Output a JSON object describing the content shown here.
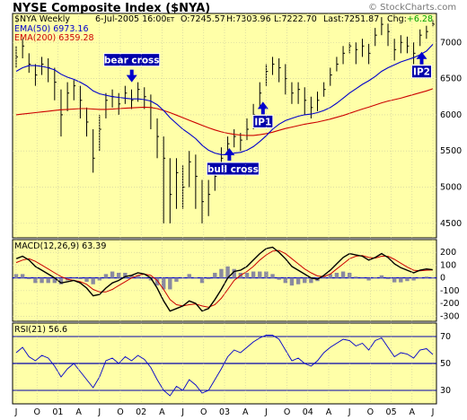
{
  "chart_data": {
    "type": "line",
    "title": "NYSE Composite Index ($NYA)",
    "copyright": "© StockCharts.com",
    "header": {
      "symbol": "$NYA Weekly",
      "date": "6-Jul-2005 16:00",
      "date_suffix": "ET",
      "open": "O:7245.57",
      "high": "H:7303.96",
      "low": "L:7222.70",
      "last": "Last:7251.87",
      "change_label": "Chg:",
      "change_value": "+6.28"
    },
    "legend": [
      {
        "label": "EMA(50) 6973.16",
        "color": "#0000cc"
      },
      {
        "label": "EMA(200) 6359.28",
        "color": "#cc0000"
      }
    ],
    "price_axis": {
      "ylim": [
        4300,
        7400
      ],
      "ticks": [
        4500,
        5000,
        5500,
        6000,
        6500,
        7000
      ]
    },
    "x_axis_labels": [
      "J",
      "O",
      "01",
      "A",
      "J",
      "O",
      "02",
      "A",
      "J",
      "O",
      "03",
      "A",
      "J",
      "O",
      "04",
      "A",
      "J",
      "O",
      "05",
      "A",
      "J"
    ],
    "price": {
      "x": [
        0,
        4,
        8,
        12,
        16,
        20,
        24,
        28,
        32,
        36,
        40,
        44,
        48,
        52,
        56,
        60,
        64,
        68,
        72,
        76,
        80,
        84,
        88,
        92,
        96,
        100,
        104,
        108,
        112,
        116,
        120,
        124,
        128,
        132,
        136,
        140,
        144,
        148,
        152,
        156,
        160,
        164,
        168,
        172,
        176,
        180,
        184,
        188,
        192,
        196,
        200,
        204,
        208,
        212,
        216,
        220,
        224,
        228,
        232,
        236,
        240,
        244,
        248,
        252,
        256,
        260
      ],
      "close": [
        6800,
        6950,
        6700,
        6550,
        6700,
        6650,
        6450,
        6000,
        6300,
        6400,
        6200,
        5900,
        5400,
        5800,
        6200,
        6250,
        6150,
        6300,
        6200,
        6350,
        6250,
        6100,
        5700,
        5400,
        4900,
        5200,
        5000,
        5350,
        5150,
        4800,
        4900,
        5150,
        5400,
        5600,
        5700,
        5650,
        5800,
        6000,
        6300,
        6600,
        6700,
        6650,
        6500,
        6300,
        6350,
        6200,
        6100,
        6200,
        6350,
        6550,
        6700,
        6850,
        6950,
        6900,
        6950,
        6850,
        7100,
        7250,
        7150,
        6900,
        7000,
        6950,
        6850,
        7100,
        7150,
        7251.87
      ],
      "high": [
        6950,
        7050,
        6850,
        6700,
        6800,
        6780,
        6650,
        6350,
        6450,
        6480,
        6400,
        6100,
        5800,
        6000,
        6300,
        6350,
        6300,
        6400,
        6350,
        6450,
        6380,
        6280,
        5950,
        5700,
        5400,
        5400,
        5300,
        5500,
        5450,
        5100,
        5100,
        5300,
        5550,
        5700,
        5800,
        5750,
        5950,
        6150,
        6450,
        6700,
        6800,
        6780,
        6700,
        6450,
        6450,
        6380,
        6250,
        6320,
        6450,
        6650,
        6800,
        6950,
        7000,
        7000,
        7050,
        6980,
        7200,
        7350,
        7260,
        7050,
        7100,
        7080,
        7000,
        7180,
        7230,
        7303.96
      ],
      "low": [
        6650,
        6780,
        6580,
        6400,
        6550,
        6450,
        6200,
        5700,
        6050,
        6200,
        5950,
        5700,
        5200,
        5500,
        5950,
        6100,
        6000,
        6150,
        6080,
        6180,
        6080,
        5800,
        5400,
        4500,
        4500,
        4700,
        4700,
        5000,
        4700,
        4500,
        4600,
        4950,
        5200,
        5450,
        5550,
        5500,
        5650,
        5800,
        6100,
        6400,
        6550,
        6450,
        6280,
        6150,
        6150,
        6000,
        5950,
        6050,
        6250,
        6400,
        6600,
        6700,
        6850,
        6700,
        6800,
        6700,
        6950,
        7100,
        6950,
        6750,
        6850,
        6850,
        6700,
        6950,
        7050,
        7222.7
      ],
      "ema50": [
        6600,
        6650,
        6680,
        6680,
        6670,
        6650,
        6620,
        6560,
        6520,
        6490,
        6450,
        6400,
        6330,
        6290,
        6270,
        6250,
        6240,
        6230,
        6220,
        6220,
        6210,
        6190,
        6140,
        6060,
        5960,
        5880,
        5800,
        5740,
        5670,
        5580,
        5510,
        5470,
        5450,
        5450,
        5470,
        5480,
        5510,
        5560,
        5630,
        5710,
        5800,
        5870,
        5920,
        5950,
        5980,
        6000,
        6010,
        6030,
        6060,
        6100,
        6160,
        6230,
        6300,
        6360,
        6420,
        6470,
        6530,
        6600,
        6650,
        6690,
        6730,
        6760,
        6790,
        6830,
        6880,
        6973.16
      ],
      "ema200": [
        6000,
        6010,
        6020,
        6030,
        6040,
        6050,
        6060,
        6070,
        6075,
        6080,
        6085,
        6085,
        6080,
        6075,
        6075,
        6080,
        6085,
        6090,
        6095,
        6100,
        6105,
        6100,
        6085,
        6060,
        6030,
        5995,
        5960,
        5925,
        5890,
        5855,
        5820,
        5790,
        5765,
        5745,
        5730,
        5720,
        5715,
        5715,
        5725,
        5740,
        5760,
        5785,
        5810,
        5830,
        5850,
        5870,
        5885,
        5900,
        5920,
        5940,
        5965,
        5990,
        6020,
        6050,
        6080,
        6105,
        6135,
        6165,
        6190,
        6210,
        6230,
        6255,
        6280,
        6305,
        6330,
        6359.28
      ]
    },
    "annotations": [
      {
        "label": "bear cross",
        "at_x": 71,
        "at_price": 6400
      },
      {
        "label": "bull cross",
        "at_x": 133,
        "at_price": 5540
      },
      {
        "label": "IP1",
        "at_x": 154,
        "at_price": 6180
      },
      {
        "label": "IP2",
        "at_x": 253,
        "at_price": 6870
      }
    ],
    "macd": {
      "label": "MACD(12,26,9) 63.39",
      "ylim": [
        -340,
        300
      ],
      "ticks": [
        200,
        100,
        0,
        -100,
        -200,
        -300
      ],
      "macd": [
        150,
        170,
        140,
        90,
        60,
        30,
        0,
        -40,
        -30,
        -20,
        -40,
        -80,
        -140,
        -130,
        -80,
        -40,
        -20,
        10,
        20,
        40,
        30,
        0,
        -80,
        -180,
        -260,
        -240,
        -220,
        -180,
        -200,
        -260,
        -240,
        -170,
        -90,
        0,
        50,
        60,
        90,
        140,
        190,
        230,
        240,
        200,
        150,
        90,
        60,
        30,
        0,
        -10,
        20,
        60,
        110,
        160,
        190,
        180,
        170,
        140,
        160,
        190,
        160,
        110,
        80,
        60,
        40,
        60,
        70,
        63.39
      ],
      "signal": [
        120,
        140,
        150,
        130,
        100,
        70,
        40,
        10,
        -10,
        -20,
        -30,
        -50,
        -90,
        -110,
        -110,
        -90,
        -60,
        -30,
        0,
        20,
        30,
        20,
        -20,
        -90,
        -170,
        -210,
        -220,
        -210,
        -205,
        -220,
        -230,
        -210,
        -160,
        -90,
        -20,
        20,
        50,
        90,
        140,
        180,
        210,
        215,
        190,
        150,
        110,
        70,
        40,
        15,
        10,
        30,
        70,
        110,
        150,
        170,
        175,
        160,
        155,
        170,
        170,
        145,
        115,
        85,
        60,
        55,
        60,
        62
      ]
    },
    "rsi": {
      "label": "RSI(21) 56.6",
      "ylim": [
        20,
        80
      ],
      "ticks": [
        70,
        50,
        30
      ],
      "values": [
        58,
        62,
        55,
        52,
        56,
        54,
        48,
        40,
        46,
        50,
        44,
        38,
        32,
        40,
        52,
        54,
        50,
        55,
        52,
        56,
        53,
        47,
        38,
        30,
        26,
        33,
        30,
        38,
        34,
        28,
        30,
        38,
        46,
        55,
        60,
        58,
        62,
        66,
        69,
        71,
        71,
        68,
        60,
        52,
        54,
        50,
        48,
        52,
        58,
        62,
        65,
        68,
        67,
        63,
        65,
        60,
        67,
        69,
        62,
        55,
        58,
        57,
        54,
        60,
        61,
        56.6
      ]
    }
  }
}
